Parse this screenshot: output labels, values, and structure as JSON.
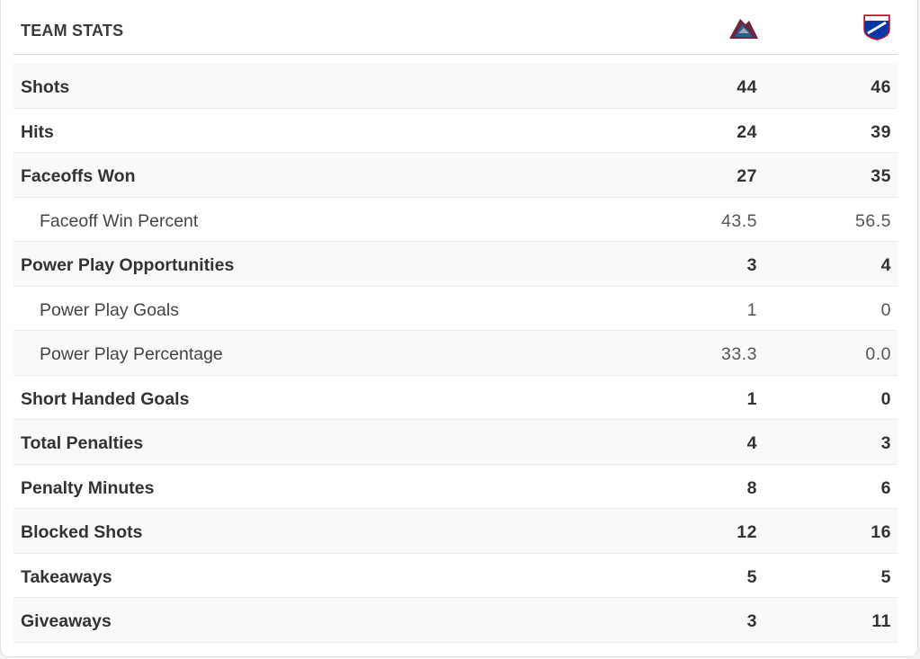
{
  "header": {
    "title": "TEAM STATS"
  },
  "table": {
    "rows": [
      {
        "label": "Shots",
        "sub": false,
        "values": [
          "44",
          "46"
        ]
      },
      {
        "label": "Hits",
        "sub": false,
        "values": [
          "24",
          "39"
        ]
      },
      {
        "label": "Faceoffs Won",
        "sub": false,
        "values": [
          "27",
          "35"
        ]
      },
      {
        "label": "Faceoff Win Percent",
        "sub": true,
        "values": [
          "43.5",
          "56.5"
        ]
      },
      {
        "label": "Power Play Opportunities",
        "sub": false,
        "values": [
          "3",
          "4"
        ]
      },
      {
        "label": "Power Play Goals",
        "sub": true,
        "values": [
          "1",
          "0"
        ]
      },
      {
        "label": "Power Play Percentage",
        "sub": true,
        "values": [
          "33.3",
          "0.0"
        ]
      },
      {
        "label": "Short Handed Goals",
        "sub": false,
        "values": [
          "1",
          "0"
        ]
      },
      {
        "label": "Total Penalties",
        "sub": false,
        "values": [
          "4",
          "3"
        ]
      },
      {
        "label": "Penalty Minutes",
        "sub": false,
        "values": [
          "8",
          "6"
        ]
      },
      {
        "label": "Blocked Shots",
        "sub": false,
        "values": [
          "12",
          "16"
        ]
      },
      {
        "label": "Takeaways",
        "sub": false,
        "values": [
          "5",
          "5"
        ]
      },
      {
        "label": "Giveaways",
        "sub": false,
        "values": [
          "3",
          "11"
        ]
      }
    ]
  }
}
